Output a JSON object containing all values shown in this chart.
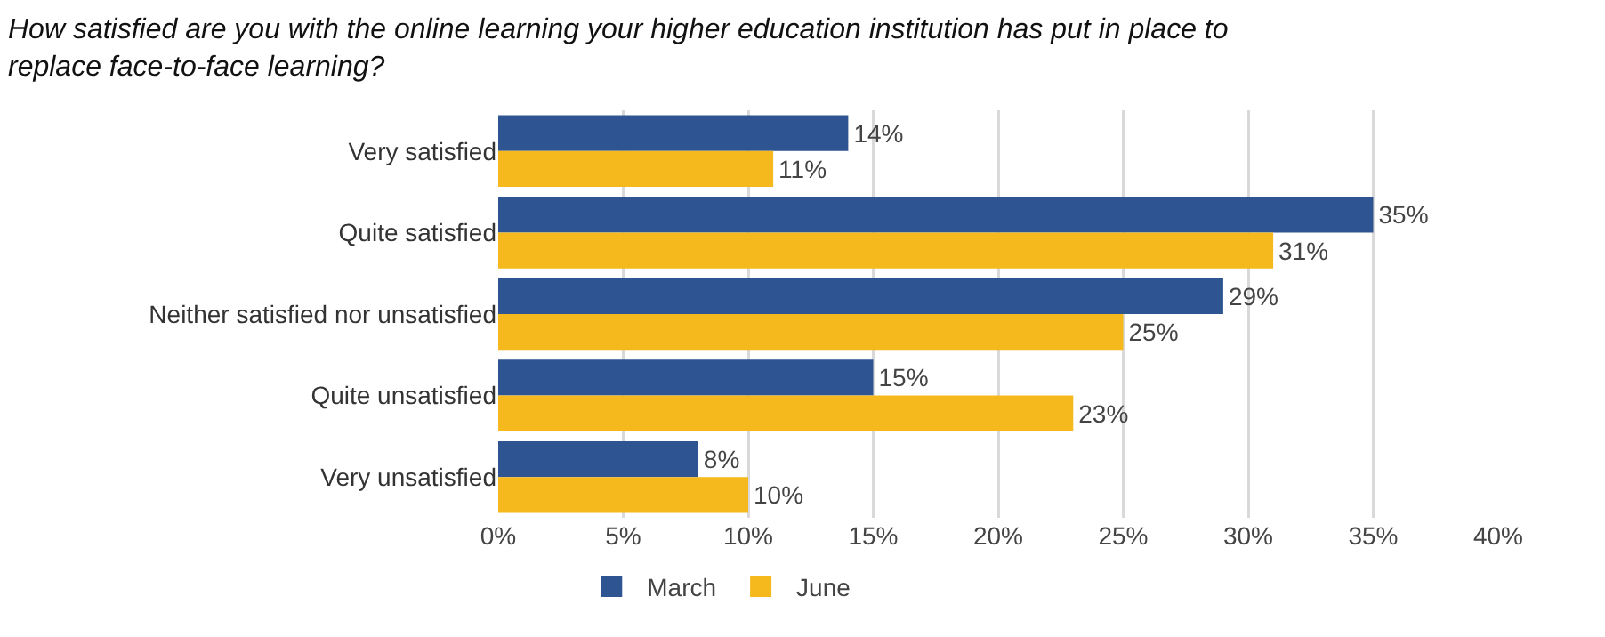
{
  "chart_data": {
    "type": "bar",
    "orientation": "horizontal",
    "title": "How satisfied are you with the online learning your higher education institution has put in place to replace face-to-face learning?",
    "categories": [
      "Very satisfied",
      "Quite satisfied",
      "Neither satisfied nor unsatisfied",
      "Quite unsatisfied",
      "Very unsatisfied"
    ],
    "series": [
      {
        "name": "March",
        "color": "#2e5591",
        "values": [
          14,
          35,
          29,
          15,
          8
        ],
        "value_labels": [
          "14%",
          "35%",
          "29%",
          "15%",
          "8%"
        ]
      },
      {
        "name": "June",
        "color": "#f5b91d",
        "values": [
          11,
          31,
          25,
          23,
          10
        ],
        "value_labels": [
          "11%",
          "31%",
          "25%",
          "23%",
          "10%"
        ]
      }
    ],
    "xlim": [
      0,
      40
    ],
    "xticks": [
      {
        "value": 0,
        "label": "0%"
      },
      {
        "value": 5,
        "label": "5%"
      },
      {
        "value": 10,
        "label": "10%"
      },
      {
        "value": 15,
        "label": "15%"
      },
      {
        "value": 20,
        "label": "20%"
      },
      {
        "value": 25,
        "label": "25%"
      },
      {
        "value": 30,
        "label": "30%"
      },
      {
        "value": 35,
        "label": "35%"
      },
      {
        "value": 40,
        "label": "40%"
      }
    ],
    "grid": "x",
    "legend": "bottom"
  }
}
